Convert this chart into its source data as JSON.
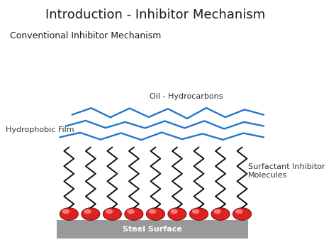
{
  "title": "Introduction - Inhibitor Mechanism",
  "subtitle": "Conventional Inhibitor Mechanism",
  "label_oil": "Oil - Hydrocarbons",
  "label_film": "Hydrophobic Film",
  "label_surf": "Surfactant Inhibitor\nMolecules",
  "label_steel": "Steel Surface",
  "bg_color": "#ffffff",
  "title_fontsize": 13,
  "subtitle_fontsize": 9,
  "steel_color": "#999999",
  "ball_color": "#dd2222",
  "ball_highlight": "#ff9999",
  "blue_line_color": "#2277cc",
  "zigzag_color": "#111111",
  "n_molecules": 9,
  "fig_width": 4.74,
  "fig_height": 3.55
}
